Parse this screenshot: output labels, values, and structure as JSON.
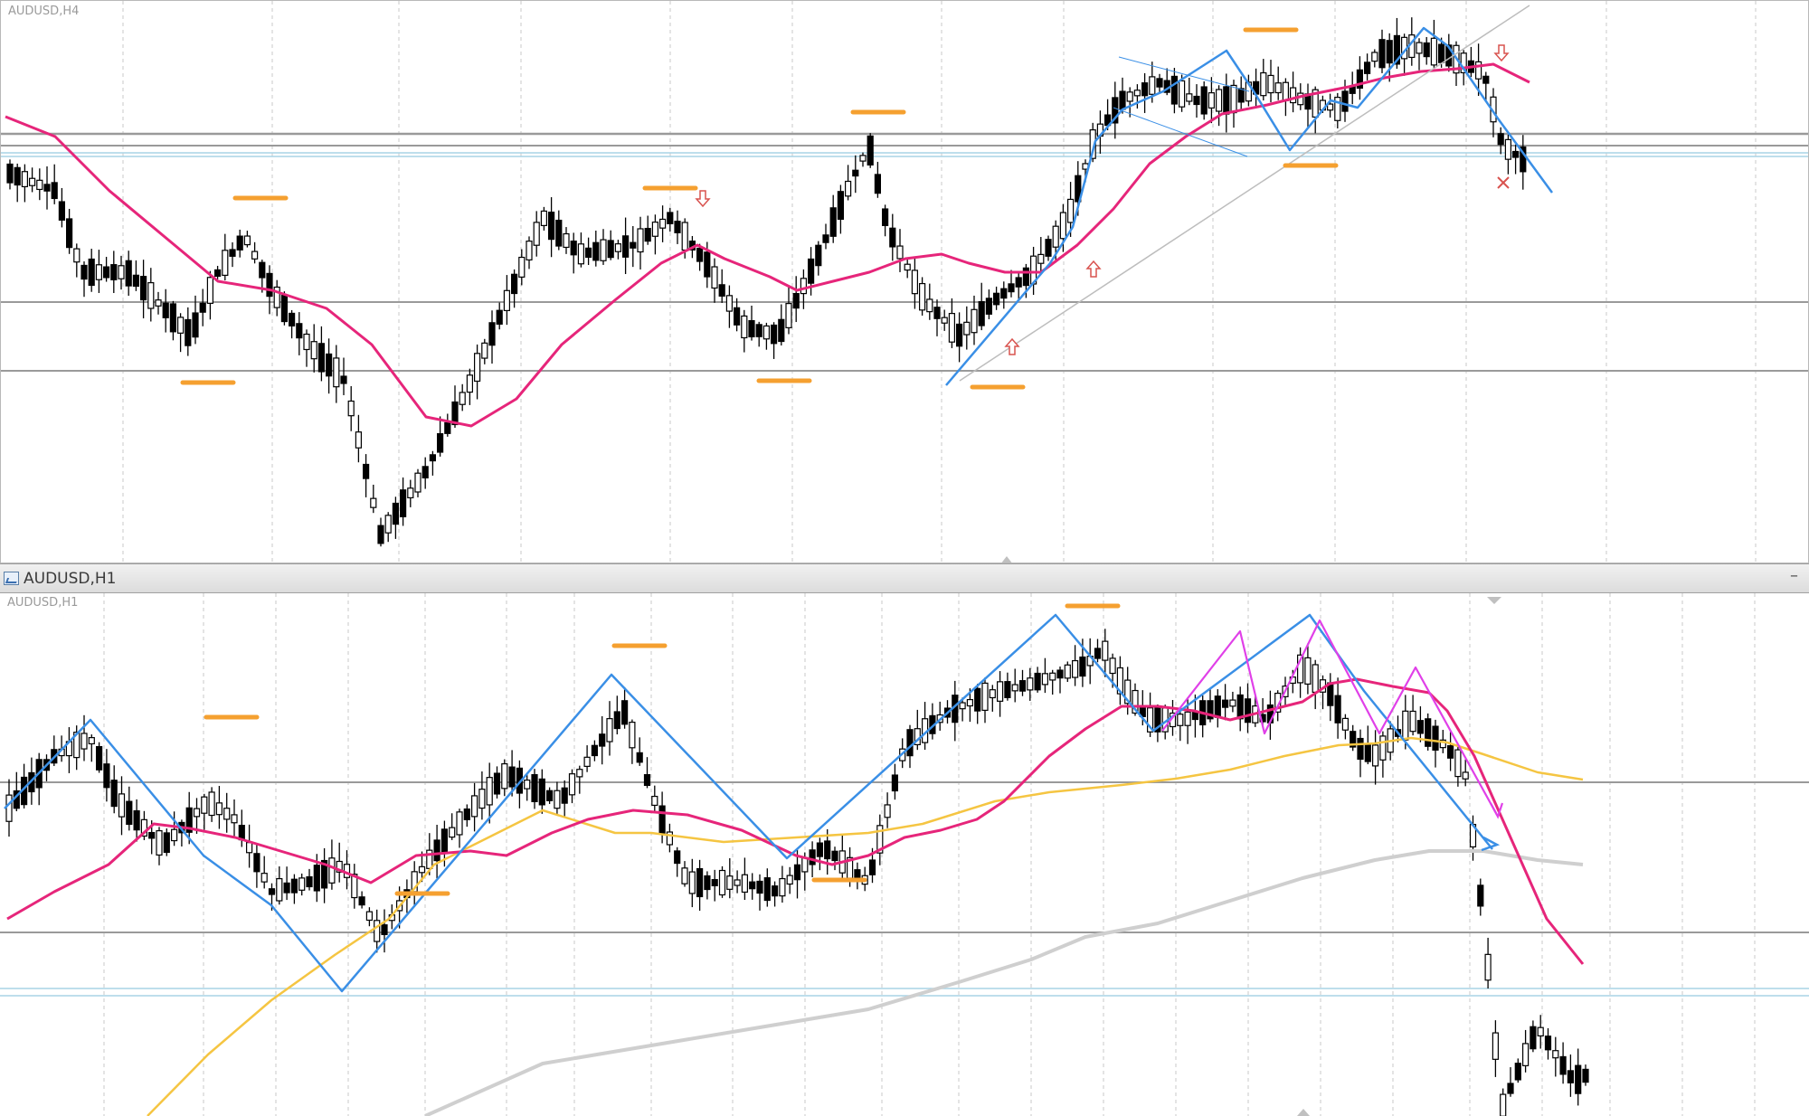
{
  "window": {
    "title": "AUDUSD,H1",
    "minimize_glyph": "–",
    "icon": "chart-window-icon"
  },
  "charts": [
    {
      "id": "top",
      "label": "AUDUSD,H4",
      "symbol": "AUDUSD",
      "timeframe": "H4"
    },
    {
      "id": "bottom",
      "label": "AUDUSD,H1",
      "symbol": "AUDUSD",
      "timeframe": "H1"
    }
  ],
  "colors": {
    "bull": "#ffffff",
    "bear": "#000000",
    "wick": "#000000",
    "ma_fast": "#e6257a",
    "ma_mid": "#f5c542",
    "ma_slow": "#cfcfcf",
    "zigzag": "#3a8fe6",
    "zigzag_alt": "#e040e8",
    "swing_mark": "#f5a030",
    "arrow": "#d9534f",
    "hline": "#9a9a9a",
    "hline_light": "#a9d4e6",
    "grid": "#c8c8c8"
  }
}
